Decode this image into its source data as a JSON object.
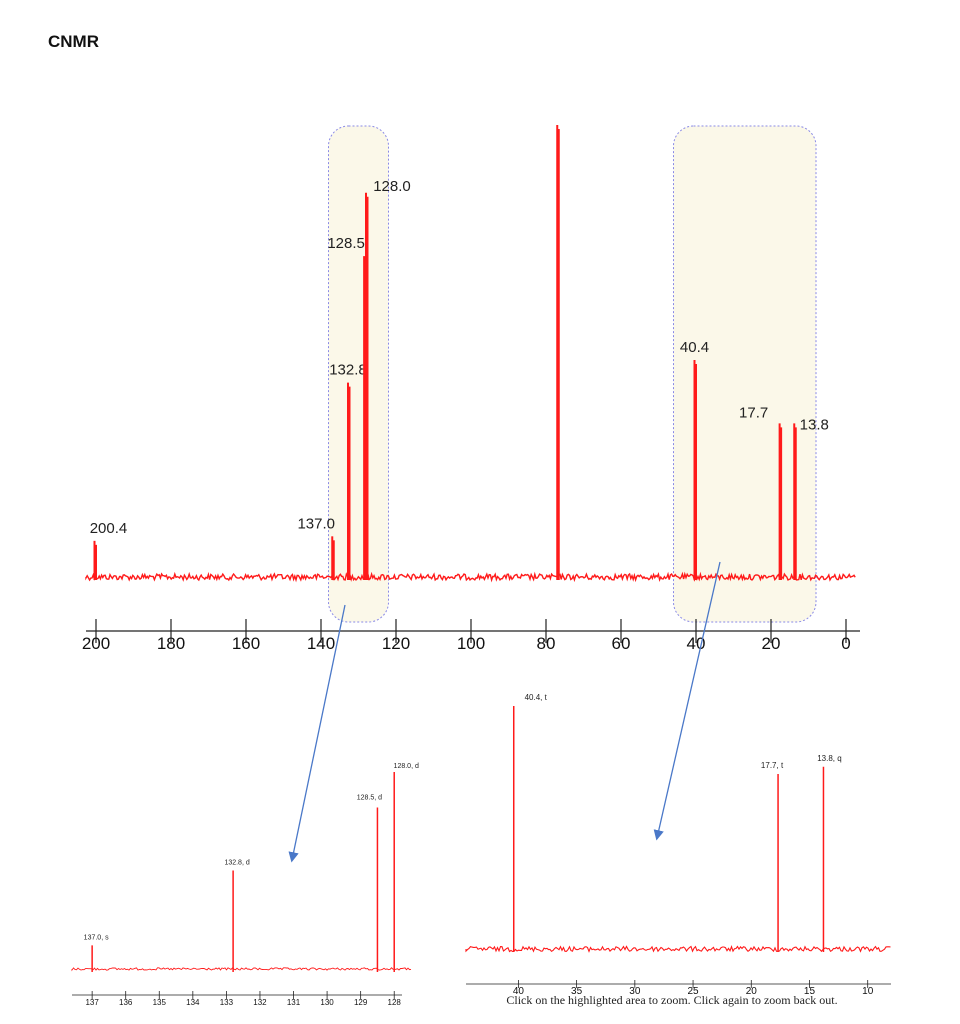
{
  "title": "CNMR",
  "footer_text": "Click on the highlighted area to zoom. Click again to zoom back out.",
  "colors": {
    "spectrum": "#ff1a1a",
    "highlight_fill": "#fbf8e9",
    "highlight_border": "#8a8ae6",
    "arrow": "#4a78c8"
  },
  "chart_data": [
    {
      "type": "line",
      "name": "full spectrum",
      "xlim": [
        200,
        0
      ],
      "ticks": [
        200,
        180,
        160,
        140,
        120,
        100,
        80,
        60,
        40,
        20,
        0
      ],
      "highlight_ranges": [
        [
          138,
          122
        ],
        [
          46,
          8
        ]
      ],
      "peaks": [
        {
          "ppm": 200.4,
          "label": "200.4",
          "height": 0.08
        },
        {
          "ppm": 137.0,
          "label": "137.0",
          "height": 0.09
        },
        {
          "ppm": 132.8,
          "label": "132.8",
          "height": 0.43
        },
        {
          "ppm": 128.5,
          "label": "128.5",
          "height": 0.71
        },
        {
          "ppm": 128.0,
          "label": "128.0",
          "height": 0.85
        },
        {
          "ppm": 77.0,
          "label": "",
          "height": 1.0
        },
        {
          "ppm": 40.4,
          "label": "40.4",
          "height": 0.48
        },
        {
          "ppm": 17.7,
          "label": "17.7",
          "height": 0.34
        },
        {
          "ppm": 13.8,
          "label": "13.8",
          "height": 0.34
        }
      ]
    },
    {
      "type": "line",
      "name": "zoom aromatic",
      "xlim": [
        137.6,
        127.5
      ],
      "ticks": [
        137,
        136,
        135,
        134,
        133,
        132,
        131,
        130,
        129,
        128
      ],
      "peaks": [
        {
          "ppm": 137.0,
          "label": "137.0, s",
          "height": 0.12
        },
        {
          "ppm": 132.8,
          "label": "132.8, d",
          "height": 0.5
        },
        {
          "ppm": 128.5,
          "label": "128.5, d",
          "height": 0.82
        },
        {
          "ppm": 128.0,
          "label": "128.0, d",
          "height": 1.0
        }
      ]
    },
    {
      "type": "line",
      "name": "zoom aliphatic",
      "xlim": [
        44.5,
        8
      ],
      "ticks": [
        40,
        35,
        30,
        25,
        20,
        15,
        10
      ],
      "peaks": [
        {
          "ppm": 40.4,
          "label": "40.4, t",
          "height": 1.0
        },
        {
          "ppm": 17.7,
          "label": "17.7, t",
          "height": 0.72
        },
        {
          "ppm": 13.8,
          "label": "13.8, q",
          "height": 0.75
        }
      ]
    }
  ]
}
